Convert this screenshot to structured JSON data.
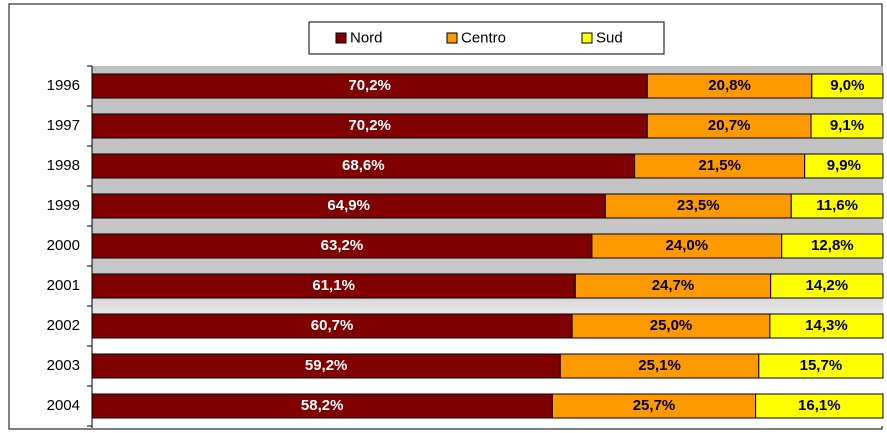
{
  "chart_data": {
    "type": "stacked_bar_horizontal",
    "categories": [
      "1996",
      "1997",
      "1998",
      "1999",
      "2000",
      "2001",
      "2002",
      "2003",
      "2004"
    ],
    "series": [
      {
        "name": "Nord",
        "color": "#800000",
        "label_color": "#ffffff",
        "values": [
          70.2,
          70.2,
          68.6,
          64.9,
          63.2,
          61.1,
          60.7,
          59.2,
          58.2
        ],
        "value_labels": [
          "70,2%",
          "70,2%",
          "68,6%",
          "64,9%",
          "63,2%",
          "61,1%",
          "60,7%",
          "59,2%",
          "58,2%"
        ]
      },
      {
        "name": "Centro",
        "color": "#ff9900",
        "label_color": "#000000",
        "values": [
          20.8,
          20.7,
          21.5,
          23.5,
          24.0,
          24.7,
          25.0,
          25.1,
          25.7
        ],
        "value_labels": [
          "20,8%",
          "20,7%",
          "21,5%",
          "23,5%",
          "24,0%",
          "24,7%",
          "25,0%",
          "25,1%",
          "25,7%"
        ]
      },
      {
        "name": "Sud",
        "color": "#ffff00",
        "label_color": "#000000",
        "values": [
          9.0,
          9.1,
          9.9,
          11.6,
          12.8,
          14.2,
          14.3,
          15.7,
          16.1
        ],
        "value_labels": [
          "9,0%",
          "9,1%",
          "9,9%",
          "11,6%",
          "12,8%",
          "14,2%",
          "14,3%",
          "15,7%",
          "16,1%"
        ]
      }
    ],
    "xlim": [
      0,
      100
    ],
    "legend": "top"
  }
}
